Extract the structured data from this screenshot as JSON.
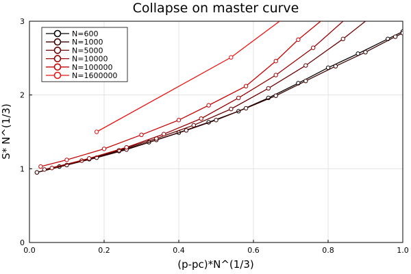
{
  "chart_data": {
    "type": "line",
    "title": "Collapse on master curve",
    "xlabel": "(p-pc)*N^(1/3)",
    "ylabel": "S* N^(1/3)",
    "xlim": [
      0,
      1
    ],
    "ylim": [
      0,
      3
    ],
    "xticks": [
      0,
      0.2,
      0.4,
      0.6,
      0.8,
      1
    ],
    "xtick_labels": [
      "0.0",
      "0.2",
      "0.4",
      "0.6",
      "0.8",
      "1.0"
    ],
    "yticks": [
      0,
      1,
      2,
      3
    ],
    "ytick_labels": [
      "0",
      "1",
      "2",
      "3"
    ],
    "grid": true,
    "legend_position": "top-left",
    "series": [
      {
        "name": "N=600",
        "color": "#000000",
        "x": [
          0.02,
          0.08,
          0.16,
          0.24,
          0.32,
          0.4,
          0.48,
          0.56,
          0.64,
          0.72,
          0.8,
          0.88,
          0.96,
          1.0
        ],
        "y": [
          0.95,
          1.03,
          1.13,
          1.24,
          1.36,
          1.49,
          1.63,
          1.78,
          1.96,
          2.16,
          2.37,
          2.56,
          2.76,
          2.86
        ]
      },
      {
        "name": "N=1000",
        "color": "#3a0000",
        "x": [
          0.02,
          0.1,
          0.18,
          0.26,
          0.34,
          0.42,
          0.5,
          0.58,
          0.66,
          0.74,
          0.82,
          0.9,
          0.98,
          1.0
        ],
        "y": [
          0.95,
          1.05,
          1.15,
          1.26,
          1.39,
          1.52,
          1.66,
          1.82,
          1.99,
          2.19,
          2.39,
          2.58,
          2.79,
          2.84
        ]
      },
      {
        "name": "N=5000",
        "color": "#6b0000",
        "x": [
          0.04,
          0.14,
          0.24,
          0.34,
          0.44,
          0.54,
          0.64,
          0.74,
          0.84,
          0.9
        ],
        "y": [
          0.99,
          1.11,
          1.25,
          1.41,
          1.59,
          1.81,
          2.09,
          2.4,
          2.76,
          3.0
        ]
      },
      {
        "name": "N=10000",
        "color": "#980000",
        "x": [
          0.06,
          0.16,
          0.26,
          0.36,
          0.46,
          0.56,
          0.66,
          0.76,
          0.84
        ],
        "y": [
          1.01,
          1.14,
          1.29,
          1.47,
          1.68,
          1.96,
          2.27,
          2.64,
          3.0
        ]
      },
      {
        "name": "N=100000",
        "color": "#c80000",
        "x": [
          0.03,
          0.1,
          0.2,
          0.3,
          0.4,
          0.48,
          0.58,
          0.66,
          0.72,
          0.78
        ],
        "y": [
          1.03,
          1.12,
          1.27,
          1.46,
          1.66,
          1.86,
          2.12,
          2.46,
          2.75,
          3.0
        ]
      },
      {
        "name": "N=1600000",
        "color": "#ee1111",
        "x": [
          0.18,
          0.54,
          0.67
        ],
        "y": [
          1.5,
          2.51,
          3.0
        ]
      }
    ]
  }
}
